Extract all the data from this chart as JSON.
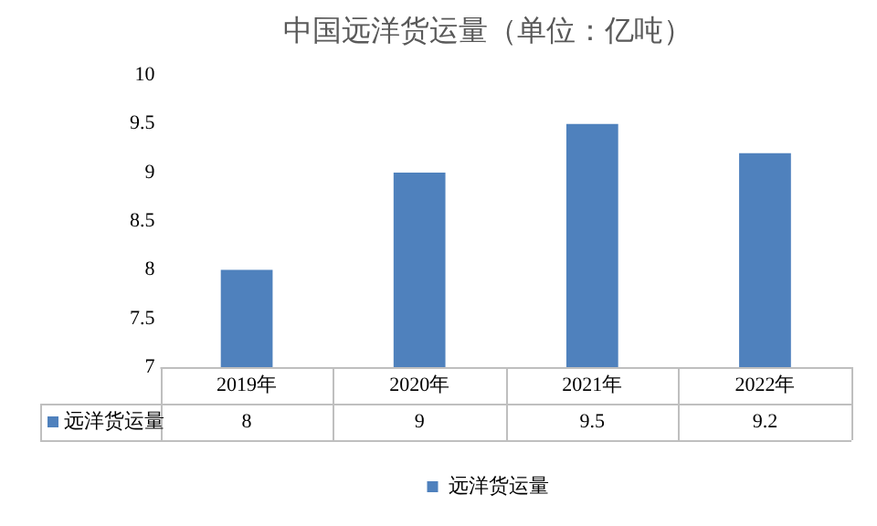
{
  "chart_data": {
    "type": "bar",
    "title": "中国远洋货运量（单位：亿吨）",
    "categories": [
      "2019年",
      "2020年",
      "2021年",
      "2022年"
    ],
    "series": [
      {
        "name": "远洋货运量",
        "color": "#4f81bd",
        "values": [
          8,
          9,
          9.5,
          9.2
        ]
      }
    ],
    "ylim": [
      7,
      10
    ],
    "yticks": [
      7,
      7.5,
      8,
      8.5,
      9,
      9.5,
      10
    ],
    "grid": false,
    "legend": "bottom",
    "data_labels": true
  }
}
